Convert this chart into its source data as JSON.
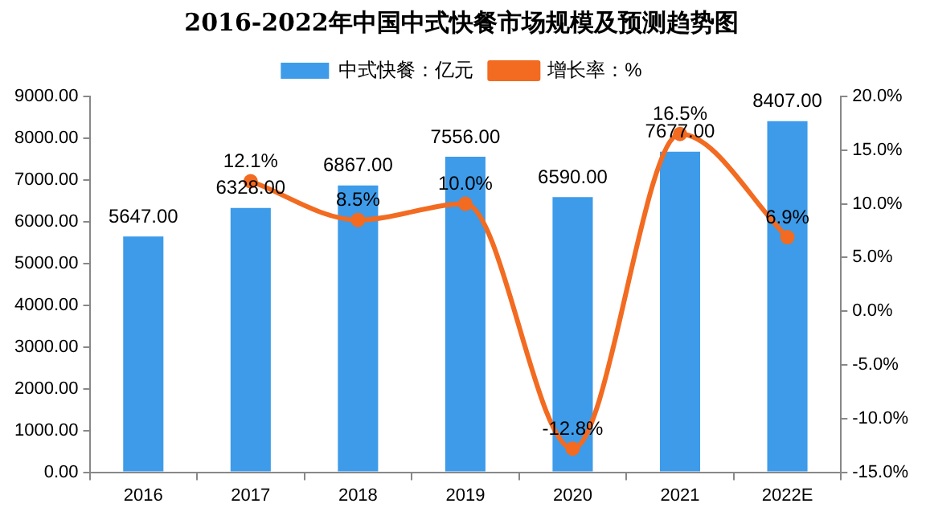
{
  "chart_data": {
    "type": "bar",
    "title": "2016-2022年中国中式快餐市场规模及预测趋势图",
    "categories": [
      "2016",
      "2017",
      "2018",
      "2019",
      "2020",
      "2021",
      "2022E"
    ],
    "series": [
      {
        "name": "中式快餐：亿元",
        "color": "#3d9be9",
        "values": [
          5647,
          6328,
          6867,
          7556,
          6590,
          7677,
          8407
        ],
        "value_labels": [
          "5647.00",
          "6328.00",
          "6867.00",
          "7556.00",
          "6590.00",
          "7677.00",
          "8407.00"
        ]
      },
      {
        "name": "增长率：%",
        "type": "line",
        "axis": "y2",
        "color": "#f26b21",
        "marker": "circle",
        "values": [
          null,
          12.1,
          8.5,
          10.0,
          -12.8,
          16.5,
          6.9
        ],
        "value_labels": [
          null,
          "12.1%",
          "8.5%",
          "10.0%",
          "-12.8%",
          "16.5%",
          "6.9%"
        ]
      }
    ],
    "ylim": [
      0,
      9000
    ],
    "yticks": [
      {
        "value": 0,
        "label": "0.00"
      },
      {
        "value": 1000,
        "label": "1000.00"
      },
      {
        "value": 2000,
        "label": "2000.00"
      },
      {
        "value": 3000,
        "label": "3000.00"
      },
      {
        "value": 4000,
        "label": "4000.00"
      },
      {
        "value": 5000,
        "label": "5000.00"
      },
      {
        "value": 6000,
        "label": "6000.00"
      },
      {
        "value": 7000,
        "label": "7000.00"
      },
      {
        "value": 8000,
        "label": "8000.00"
      },
      {
        "value": 9000,
        "label": "9000.00"
      }
    ],
    "y2lim": [
      -15,
      20
    ],
    "y2ticks": [
      {
        "value": -15,
        "label": "-15.0%"
      },
      {
        "value": -10,
        "label": "-10.0%"
      },
      {
        "value": -5,
        "label": "-5.0%"
      },
      {
        "value": 0,
        "label": "0.0%"
      },
      {
        "value": 5,
        "label": "5.0%"
      },
      {
        "value": 10,
        "label": "10.0%"
      },
      {
        "value": 15,
        "label": "15.0%"
      },
      {
        "value": 20,
        "label": "20.0%"
      }
    ],
    "grid": false,
    "legend": "top"
  }
}
